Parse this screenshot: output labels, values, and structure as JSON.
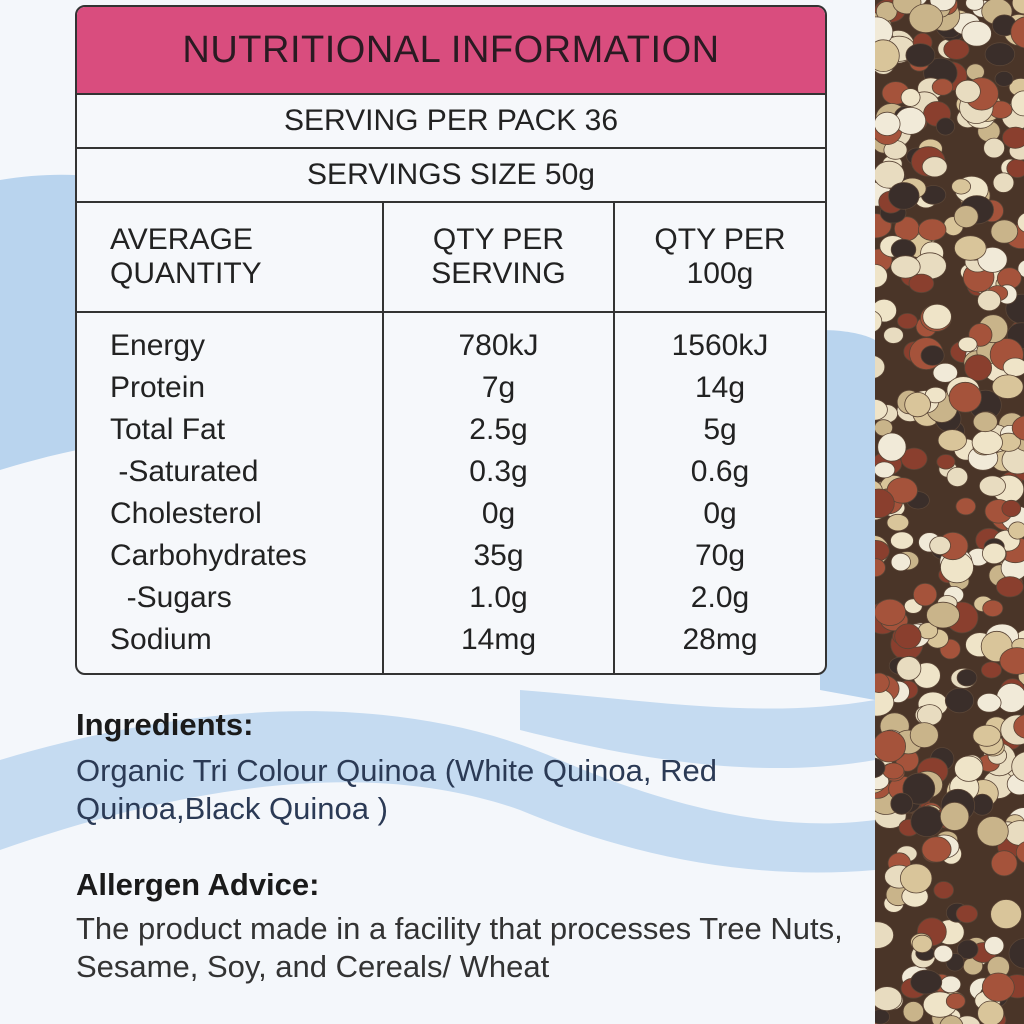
{
  "panel": {
    "title": "NUTRITIONAL INFORMATION",
    "serving_per_pack": "SERVING PER PACK 36",
    "serving_size": "SERVINGS SIZE 50g",
    "table": {
      "headers": [
        "AVERAGE\nQUANTITY",
        "QTY PER\nSERVING",
        "QTY PER\n100g"
      ],
      "rows": [
        [
          "Energy",
          "780kJ",
          "1560kJ"
        ],
        [
          "Protein",
          "7g",
          "14g"
        ],
        [
          "Total Fat",
          "2.5g",
          "5g"
        ],
        [
          " -Saturated",
          "0.3g",
          "0.6g"
        ],
        [
          "Cholesterol",
          "0g",
          "0g"
        ],
        [
          "Carbohydrates",
          "35g",
          "70g"
        ],
        [
          "  -Sugars",
          "1.0g",
          "2.0g"
        ],
        [
          "Sodium",
          "14mg",
          "28mg"
        ]
      ]
    }
  },
  "ingredients": {
    "heading": "Ingredients:",
    "text": "Organic Tri Colour Quinoa (White Quinoa, Red Quinoa,Black Quinoa )"
  },
  "allergen": {
    "heading": "Allergen Advice:",
    "text": "The product made in a facility that processes Tree Nuts, Sesame, Soy, and Cereals/ Wheat"
  }
}
